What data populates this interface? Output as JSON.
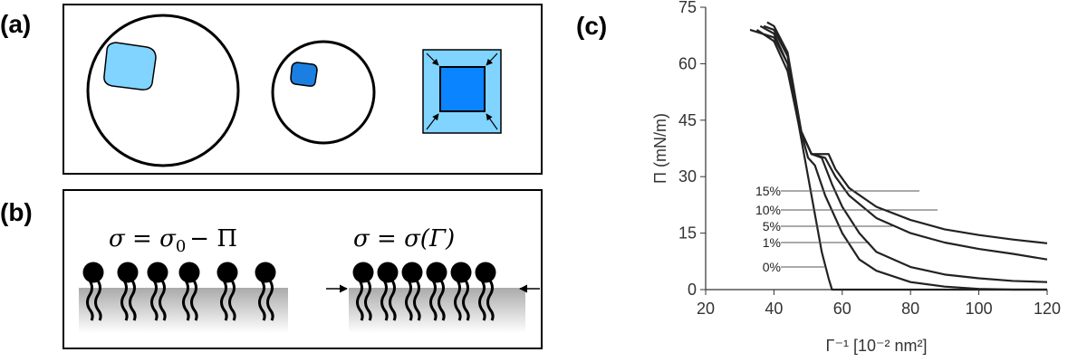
{
  "panels": {
    "a": {
      "label": "(a)"
    },
    "b": {
      "label": "(b)",
      "equation_left": {
        "main": "σ = σ",
        "sub": "0",
        "rest": "− Π"
      },
      "equation_right": "σ = σ(Γ)"
    },
    "c": {
      "label": "(c)"
    }
  },
  "chart_data": {
    "type": "line",
    "x_label": "Γ⁻¹ [10⁻² nm²]",
    "y_label": "Π (mN/m)",
    "xlim": [
      20,
      120
    ],
    "xticks": [
      20,
      40,
      60,
      80,
      100,
      120
    ],
    "ylim": [
      0,
      75
    ],
    "yticks": [
      0,
      15,
      30,
      45,
      60,
      75
    ],
    "series": [
      {
        "name": "0%",
        "color": "#222222",
        "x": [
          33,
          40,
          44,
          46,
          48,
          50,
          52,
          54,
          56,
          57,
          60,
          120
        ],
        "values": [
          69,
          67,
          60,
          50,
          40,
          30,
          20,
          10,
          3,
          0,
          0,
          0
        ]
      },
      {
        "name": "1%",
        "color": "#222222",
        "x": [
          35,
          40,
          44,
          47,
          50,
          52,
          55,
          60,
          65,
          70,
          80,
          90,
          100,
          110,
          120
        ],
        "values": [
          69,
          66,
          58,
          45,
          35,
          33,
          25,
          15,
          8,
          5,
          2,
          0.8,
          0.2,
          0,
          0
        ]
      },
      {
        "name": "5%",
        "color": "#222222",
        "x": [
          36,
          40,
          44,
          48,
          51,
          54,
          57,
          60,
          65,
          70,
          80,
          90,
          100,
          110,
          120
        ],
        "values": [
          70,
          68,
          60,
          42,
          36,
          35,
          28,
          22,
          15,
          10,
          6,
          4,
          3,
          2.3,
          2
        ]
      },
      {
        "name": "10%",
        "color": "#222222",
        "x": [
          37,
          40,
          44,
          48,
          51,
          55,
          58,
          62,
          70,
          80,
          90,
          100,
          110,
          120
        ],
        "values": [
          70,
          69,
          62,
          42,
          36,
          35,
          30,
          25,
          19,
          15,
          12.5,
          10.8,
          9.5,
          8
        ]
      },
      {
        "name": "15%",
        "color": "#222222",
        "x": [
          38,
          40,
          44,
          48,
          51,
          56,
          58,
          62,
          70,
          80,
          90,
          100,
          110,
          120
        ],
        "values": [
          71,
          70,
          63,
          42,
          36,
          36,
          32,
          27,
          22,
          18.5,
          16,
          14.5,
          13.3,
          12.3
        ]
      }
    ]
  }
}
